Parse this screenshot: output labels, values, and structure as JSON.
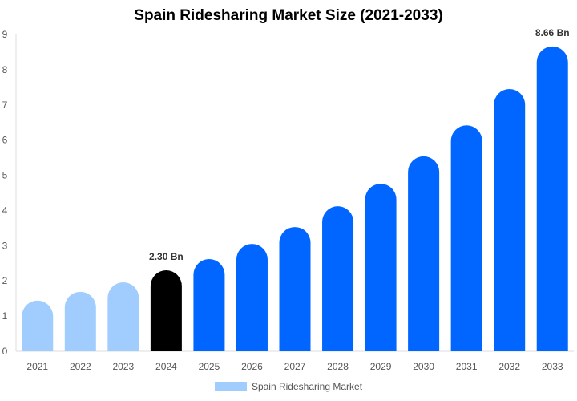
{
  "chart_data": {
    "type": "bar",
    "title": "Spain Ridesharing Market Size (2021-2033)",
    "categories": [
      "2021",
      "2022",
      "2023",
      "2024",
      "2025",
      "2026",
      "2027",
      "2028",
      "2029",
      "2030",
      "2031",
      "2032",
      "2033"
    ],
    "series": [
      {
        "name": "Spain Ridesharing Market",
        "values": [
          1.44,
          1.69,
          1.96,
          2.3,
          2.62,
          3.05,
          3.53,
          4.12,
          4.76,
          5.54,
          6.42,
          7.45,
          8.66
        ]
      }
    ],
    "data_labels": {
      "2024": "2.30 Bn",
      "2033": "8.66 Bn"
    },
    "ylim": [
      0,
      9
    ],
    "yticks": [
      "0",
      "1",
      "2",
      "3",
      "4",
      "5",
      "6",
      "7",
      "8",
      "9"
    ],
    "xlabel": "",
    "ylabel": "",
    "grid": false,
    "legend": "bottom",
    "colors": {
      "historical": "#a0cdfe",
      "base_year": "#000000",
      "forecast": "#0066ff"
    }
  }
}
